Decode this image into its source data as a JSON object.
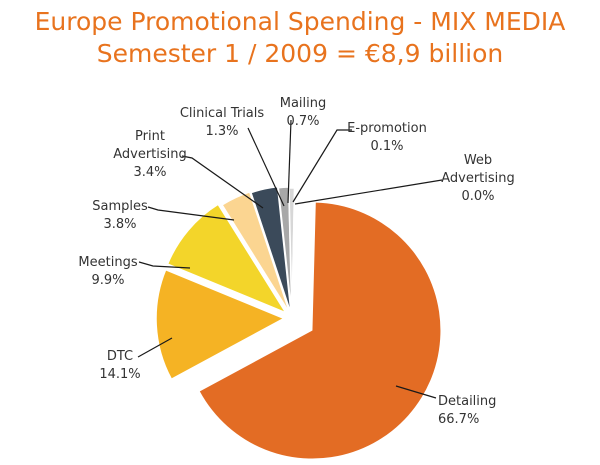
{
  "chart_data": {
    "type": "pie",
    "title": "Europe Promotional Spending - MIX MEDIA",
    "subtitle": "Semester 1 / 2009 = €8,9 billion",
    "slices": [
      {
        "name": "Detailing",
        "display": "66.7%",
        "value": 66.7,
        "color": "#e36c24"
      },
      {
        "name": "DTC",
        "display": "14.1%",
        "value": 14.1,
        "color": "#f5b324"
      },
      {
        "name": "Meetings",
        "display": "9.9%",
        "value": 9.9,
        "color": "#f3d52a"
      },
      {
        "name": "Samples",
        "display": "3.8%",
        "value": 3.8,
        "color": "#fbd591"
      },
      {
        "name": "Print Advertising",
        "display": "3.4%",
        "value": 3.4,
        "color": "#3b4a5a"
      },
      {
        "name": "Clinical Trials",
        "display": "1.3%",
        "value": 1.3,
        "color": "#a8a8a8"
      },
      {
        "name": "Mailing",
        "display": "0.7%",
        "value": 0.7,
        "color": "#d7d7d7"
      },
      {
        "name": "E-promotion",
        "display": "0.1%",
        "value": 0.1,
        "color": "#c01f2f"
      },
      {
        "name": "Web Advertising",
        "display": "0.0%",
        "value": 0.0,
        "color": "#dd1e91"
      }
    ]
  }
}
